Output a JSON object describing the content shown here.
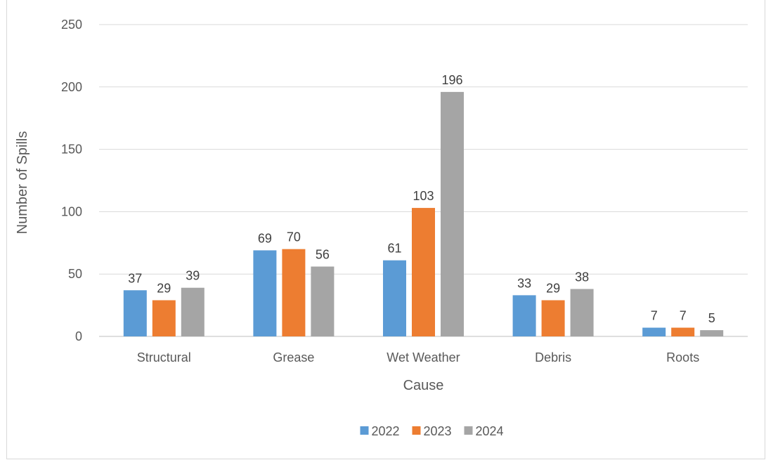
{
  "chart_data": {
    "type": "bar",
    "categories": [
      "Structural",
      "Grease",
      "Wet Weather",
      "Debris",
      "Roots"
    ],
    "series": [
      {
        "name": "2022",
        "values": [
          37,
          69,
          61,
          33,
          7
        ],
        "color": "#5b9bd5"
      },
      {
        "name": "2023",
        "values": [
          29,
          70,
          103,
          29,
          7
        ],
        "color": "#ed7d31"
      },
      {
        "name": "2024",
        "values": [
          39,
          56,
          196,
          38,
          5
        ],
        "color": "#a5a5a5"
      }
    ],
    "xlabel": "Cause",
    "ylabel": "Number of Spills",
    "ylim": [
      0,
      250
    ],
    "yticks": [
      0,
      50,
      100,
      150,
      200,
      250
    ],
    "grid": true,
    "legend_position": "bottom"
  }
}
